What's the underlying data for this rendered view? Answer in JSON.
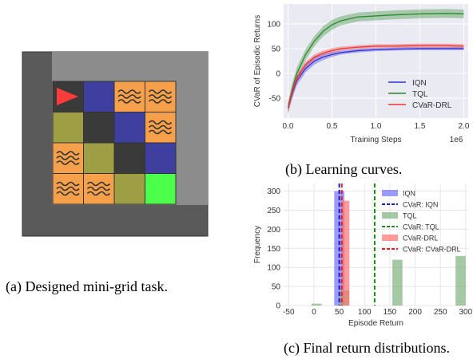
{
  "captions": {
    "a": "(a) Designed mini-grid task.",
    "b": "(b) Learning curves.",
    "c": "(c) Final return distributions."
  },
  "gridworld": {
    "rows": 5,
    "cols": 5,
    "colors": {
      "outer_wall": "#5a5a5a",
      "inner_wall": "#8c8c8c",
      "border": "#333333",
      "black": "#3a3a3a",
      "blue": "#3f3f9f",
      "olive": "#9e9e44",
      "orange": "#f7a04b",
      "green": "#4bff4b",
      "agent": "#ff3b3b",
      "wave": "#333333"
    },
    "cells": [
      [
        "agent",
        "blue",
        "orange-wave",
        "orange-wave",
        null
      ],
      [
        "olive",
        "black",
        "blue",
        "orange-wave",
        null
      ],
      [
        "orange-wave",
        "olive",
        "black",
        "blue",
        null
      ],
      [
        "orange-wave",
        "orange-wave",
        "olive",
        "green",
        null
      ]
    ]
  },
  "chart_data": [
    {
      "type": "line",
      "ylabel": "CVaR of Episodic Returns",
      "xlabel": "Training Steps",
      "x_offset_label": "1e6",
      "xlim": [
        -0.05,
        2.05
      ],
      "ylim": [
        -90,
        140
      ],
      "xticks": [
        0.0,
        0.5,
        1.0,
        1.5,
        2.0
      ],
      "xtick_labels": [
        "0.0",
        "0.5",
        "1.0",
        "1.5",
        "2.0"
      ],
      "yticks": [
        -50,
        0,
        50,
        100
      ],
      "ytick_labels": [
        "-50",
        "0",
        "50",
        "100"
      ],
      "grid": true,
      "background": "#eaeaf2",
      "legend_position": "lower-right",
      "series": [
        {
          "name": "IQN",
          "color": "#3333dd",
          "x": [
            0,
            0.05,
            0.1,
            0.2,
            0.3,
            0.4,
            0.5,
            0.6,
            0.8,
            1.0,
            1.2,
            1.5,
            1.8,
            2.0
          ],
          "y": [
            -70,
            -40,
            -15,
            10,
            25,
            33,
            38,
            42,
            46,
            48,
            49,
            50,
            50,
            50
          ],
          "band": [
            10,
            10,
            9,
            8,
            7,
            6,
            5,
            4,
            4,
            3,
            3,
            3,
            3,
            3
          ]
        },
        {
          "name": "TQL",
          "color": "#2a8a2a",
          "x": [
            0,
            0.05,
            0.1,
            0.2,
            0.3,
            0.4,
            0.5,
            0.6,
            0.7,
            0.8,
            1.0,
            1.2,
            1.5,
            1.8,
            2.0
          ],
          "y": [
            -70,
            -30,
            0,
            38,
            65,
            85,
            98,
            106,
            110,
            114,
            116,
            118,
            120,
            121,
            120
          ],
          "band": [
            12,
            12,
            12,
            11,
            10,
            10,
            10,
            9,
            9,
            9,
            9,
            9,
            9,
            9,
            9
          ]
        },
        {
          "name": "CVaR-DRL",
          "color": "#ee3333",
          "x": [
            0,
            0.05,
            0.1,
            0.2,
            0.3,
            0.4,
            0.5,
            0.6,
            0.8,
            1.0,
            1.2,
            1.5,
            1.8,
            2.0
          ],
          "y": [
            -70,
            -35,
            -10,
            18,
            33,
            41,
            46,
            50,
            53,
            55,
            55,
            56,
            56,
            55
          ],
          "band": [
            9,
            8,
            7,
            6,
            5,
            5,
            5,
            4,
            4,
            4,
            4,
            4,
            4,
            4
          ]
        }
      ]
    },
    {
      "type": "bar",
      "ylabel": "Frequency",
      "xlabel": "Episode Return",
      "xlim": [
        -60,
        305
      ],
      "ylim": [
        0,
        320
      ],
      "xticks": [
        -50,
        0,
        50,
        100,
        150,
        200,
        250,
        300
      ],
      "xtick_labels": [
        "-50",
        "0",
        "50",
        "100",
        "150",
        "200",
        "250",
        "300"
      ],
      "yticks": [
        0,
        50,
        100,
        150,
        200,
        250,
        300
      ],
      "ytick_labels": [
        "0",
        "50",
        "100",
        "150",
        "200",
        "250",
        "300"
      ],
      "grid": true,
      "background": "#ffffff",
      "legend_position": "upper-right",
      "histograms": [
        {
          "name": "IQN",
          "color": "#7070ff",
          "bins": [
            [
              40,
              60,
              300
            ]
          ]
        },
        {
          "name": "TQL",
          "color": "#7fb07f",
          "bins": [
            [
              -5,
              15,
              5
            ],
            [
              50,
              70,
              40
            ],
            [
              155,
              175,
              120
            ],
            [
              280,
              300,
              130
            ]
          ]
        },
        {
          "name": "CVaR-DRL",
          "color": "#ff7070",
          "bins": [
            [
              55,
              70,
              275
            ]
          ]
        }
      ],
      "cvar_lines": [
        {
          "name": "CVaR: IQN",
          "color": "#1a1acc",
          "value": 50
        },
        {
          "name": "CVaR: TQL",
          "color": "#1a8a1a",
          "value": 120
        },
        {
          "name": "CVaR: CVaR-DRL",
          "color": "#ee1a1a",
          "value": 55
        }
      ]
    }
  ]
}
